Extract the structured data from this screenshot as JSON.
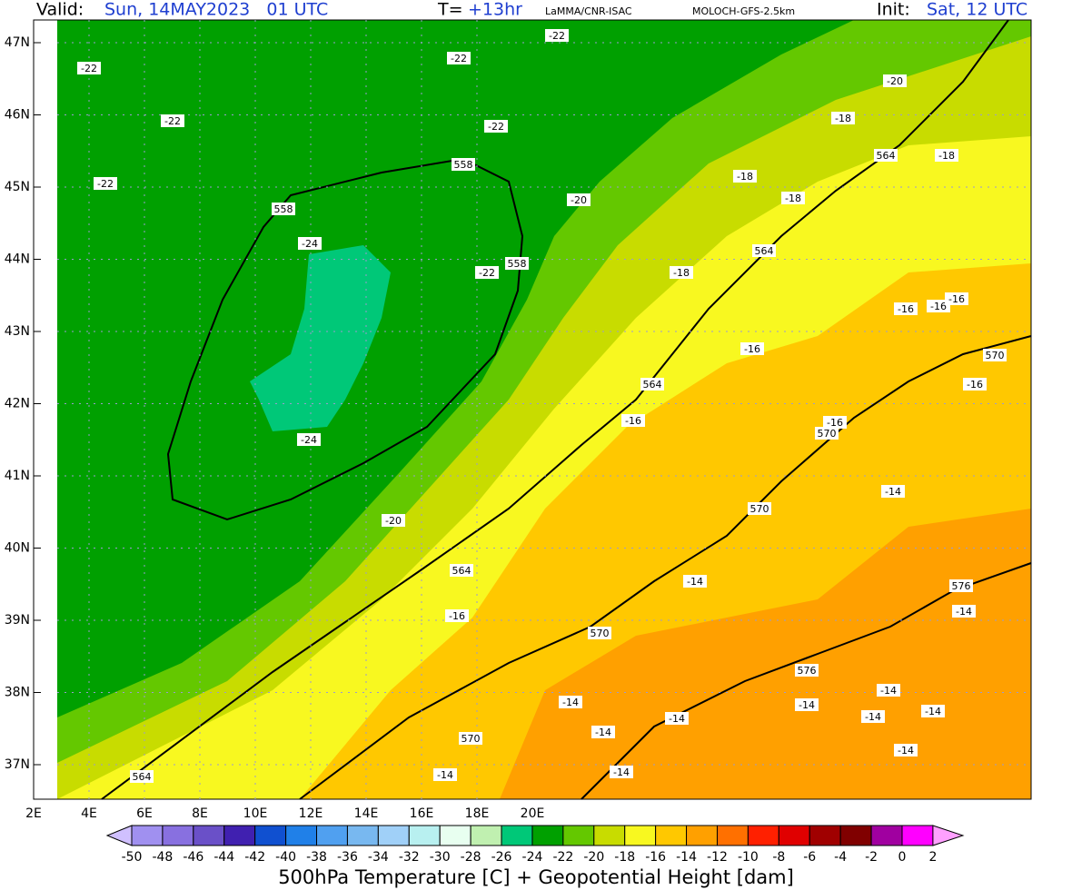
{
  "header": {
    "valid_label": "Valid:",
    "valid_value": "Sun, 14MAY2023   01 UTC",
    "forecast_label": "T=",
    "forecast_value": "+13hr",
    "source": "LaMMA/CNR-ISAC",
    "model": "MOLOCH-GFS-2.5km",
    "init_label": "Init:",
    "init_value": "Sat, 12 UTC"
  },
  "map": {
    "lat_labels": [
      "47N",
      "46N",
      "45N",
      "44N",
      "43N",
      "42N",
      "41N",
      "40N",
      "39N",
      "38N",
      "37N"
    ],
    "lon_labels": [
      "2E",
      "4E",
      "6E",
      "8E",
      "10E",
      "12E",
      "14E",
      "16E",
      "18E",
      "20E"
    ],
    "temperature_labels": [
      -22,
      -22,
      -22,
      -22,
      -22,
      -22,
      -20,
      -18,
      -18,
      -18,
      -18,
      -20,
      -24,
      -22,
      -18,
      -16,
      -16,
      -16,
      -16,
      -16,
      -16,
      -16,
      -24,
      -14,
      -20,
      -14,
      -14,
      -16,
      -14,
      -14,
      -14,
      -14,
      -14,
      -14,
      -14,
      -14,
      -14,
      -14
    ],
    "height_labels": [
      558,
      558,
      558,
      564,
      564,
      564,
      564,
      564,
      570,
      570,
      570,
      570,
      570,
      576,
      576
    ]
  },
  "colorbar": {
    "ticks": [
      -50,
      -48,
      -46,
      -44,
      -42,
      -40,
      -38,
      -36,
      -34,
      -32,
      -30,
      -28,
      -26,
      -24,
      -22,
      -20,
      -18,
      -16,
      -14,
      -12,
      -10,
      -8,
      -6,
      -4,
      -2,
      0,
      2
    ],
    "colors": [
      "#d0c0ff",
      "#a090f0",
      "#8870e0",
      "#6a50c8",
      "#4020b0",
      "#1050d0",
      "#2080e8",
      "#50a0f0",
      "#78b8f0",
      "#a0d0f8",
      "#b8f0f0",
      "#e8fff0",
      "#c0f0b0",
      "#00c878",
      "#00a000",
      "#64c800",
      "#c8dc00",
      "#f8f820",
      "#ffc800",
      "#ffa000",
      "#ff7000",
      "#ff2000",
      "#e00000",
      "#a00000",
      "#800000",
      "#a000a0",
      "#ff00ff",
      "#ffa0ff"
    ],
    "title": "500hPa Temperature [C] + Geopotential Height [dam]"
  }
}
